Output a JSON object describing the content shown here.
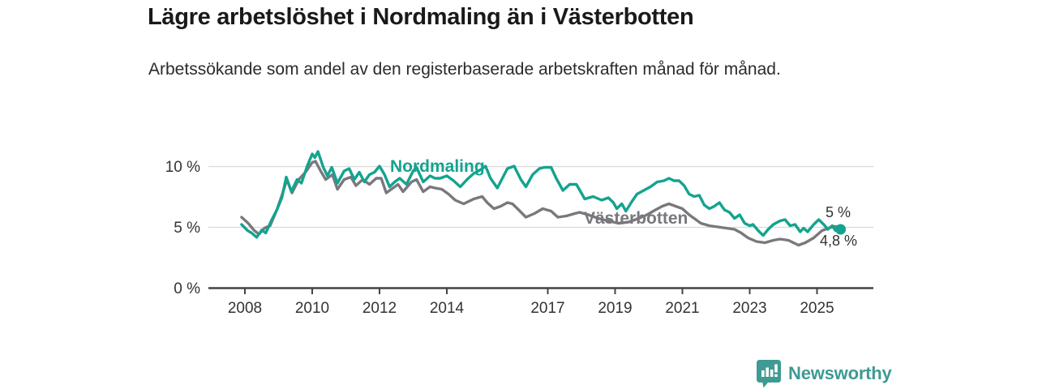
{
  "header": {
    "title": "Lägre arbetslöshet i Nordmaling än i Västerbotten",
    "subtitle": "Arbetssökande som andel av den registerbaserade arbetskraften månad för månad."
  },
  "footer": {
    "brand": "Newsworthy"
  },
  "colors": {
    "nordmaling": "#14a38f",
    "vasterbotten": "#7a787d",
    "grid": "#d9d9d9",
    "axis": "#444444",
    "text": "#333333",
    "title": "#191919",
    "logo": "#3f9a93",
    "background": "#ffffff"
  },
  "chart_data": {
    "type": "line",
    "title": "Lägre arbetslöshet i Nordmaling än i Västerbotten",
    "subtitle": "Arbetssökande som andel av den registerbaserade arbetskraften månad för månad.",
    "xlabel": "",
    "ylabel": "",
    "unit": "%",
    "xlim": [
      2007.9,
      2026.2
    ],
    "ylim": [
      0,
      12
    ],
    "grid": "horizontal",
    "legend_position": "inline",
    "y_ticks": [
      {
        "value": 0,
        "label": "0 %"
      },
      {
        "value": 5,
        "label": "5 %"
      },
      {
        "value": 10,
        "label": "10 %"
      }
    ],
    "y_gridlines": [
      5,
      10
    ],
    "x_ticks": [
      {
        "year": 2008,
        "label": "2008"
      },
      {
        "year": 2010,
        "label": "2010"
      },
      {
        "year": 2012,
        "label": "2012"
      },
      {
        "year": 2014,
        "label": "2014"
      },
      {
        "year": 2017,
        "label": "2017"
      },
      {
        "year": 2019,
        "label": "2019"
      },
      {
        "year": 2021,
        "label": "2021"
      },
      {
        "year": 2023,
        "label": "2023"
      },
      {
        "year": 2025,
        "label": "2025"
      }
    ],
    "series": [
      {
        "name": "Nordmaling",
        "color": "#14a38f",
        "latest": 4.8,
        "end_label": "4,8 %",
        "end_marker": "dot",
        "points": [
          [
            2007.9,
            5.2
          ],
          [
            2008.08,
            4.7
          ],
          [
            2008.2,
            4.5
          ],
          [
            2008.35,
            4.15
          ],
          [
            2008.5,
            4.75
          ],
          [
            2008.62,
            4.5
          ],
          [
            2008.8,
            5.6
          ],
          [
            2008.95,
            6.4
          ],
          [
            2009.1,
            7.4
          ],
          [
            2009.23,
            9.1
          ],
          [
            2009.38,
            7.9
          ],
          [
            2009.55,
            8.9
          ],
          [
            2009.68,
            8.6
          ],
          [
            2009.85,
            10.0
          ],
          [
            2010.0,
            11.0
          ],
          [
            2010.08,
            10.7
          ],
          [
            2010.17,
            11.2
          ],
          [
            2010.33,
            9.9
          ],
          [
            2010.45,
            9.2
          ],
          [
            2010.58,
            9.9
          ],
          [
            2010.75,
            8.6
          ],
          [
            2010.95,
            9.6
          ],
          [
            2011.1,
            9.8
          ],
          [
            2011.25,
            8.9
          ],
          [
            2011.4,
            9.5
          ],
          [
            2011.55,
            8.7
          ],
          [
            2011.7,
            9.3
          ],
          [
            2011.85,
            9.5
          ],
          [
            2012.0,
            10.0
          ],
          [
            2012.15,
            9.3
          ],
          [
            2012.3,
            8.3
          ],
          [
            2012.45,
            8.7
          ],
          [
            2012.6,
            9.0
          ],
          [
            2012.8,
            8.5
          ],
          [
            2013.0,
            9.6
          ],
          [
            2013.1,
            9.9
          ],
          [
            2013.3,
            8.7
          ],
          [
            2013.5,
            9.2
          ],
          [
            2013.65,
            9.0
          ],
          [
            2013.8,
            9.0
          ],
          [
            2014.0,
            9.2
          ],
          [
            2014.2,
            8.8
          ],
          [
            2014.4,
            8.3
          ],
          [
            2014.6,
            8.9
          ],
          [
            2014.8,
            9.4
          ],
          [
            2015.0,
            9.7
          ],
          [
            2015.15,
            10.0
          ],
          [
            2015.3,
            9.0
          ],
          [
            2015.5,
            8.2
          ],
          [
            2015.65,
            9.0
          ],
          [
            2015.8,
            9.8
          ],
          [
            2016.0,
            10.0
          ],
          [
            2016.2,
            8.9
          ],
          [
            2016.35,
            8.3
          ],
          [
            2016.55,
            9.3
          ],
          [
            2016.75,
            9.8
          ],
          [
            2016.9,
            9.9
          ],
          [
            2017.1,
            9.9
          ],
          [
            2017.25,
            9.0
          ],
          [
            2017.45,
            8.0
          ],
          [
            2017.65,
            8.5
          ],
          [
            2017.85,
            8.5
          ],
          [
            2018.1,
            7.3
          ],
          [
            2018.35,
            7.5
          ],
          [
            2018.6,
            7.2
          ],
          [
            2018.8,
            7.4
          ],
          [
            2018.95,
            7.0
          ],
          [
            2019.05,
            6.5
          ],
          [
            2019.2,
            6.9
          ],
          [
            2019.32,
            6.3
          ],
          [
            2019.5,
            7.1
          ],
          [
            2019.65,
            7.7
          ],
          [
            2019.85,
            8.0
          ],
          [
            2020.05,
            8.3
          ],
          [
            2020.25,
            8.7
          ],
          [
            2020.45,
            8.8
          ],
          [
            2020.6,
            9.0
          ],
          [
            2020.75,
            8.8
          ],
          [
            2020.9,
            8.8
          ],
          [
            2021.05,
            8.4
          ],
          [
            2021.2,
            7.7
          ],
          [
            2021.35,
            7.5
          ],
          [
            2021.5,
            7.6
          ],
          [
            2021.65,
            6.8
          ],
          [
            2021.8,
            6.5
          ],
          [
            2021.95,
            6.7
          ],
          [
            2022.1,
            7.0
          ],
          [
            2022.25,
            6.4
          ],
          [
            2022.4,
            6.2
          ],
          [
            2022.55,
            5.7
          ],
          [
            2022.7,
            6.0
          ],
          [
            2022.85,
            5.3
          ],
          [
            2023.0,
            5.1
          ],
          [
            2023.1,
            5.2
          ],
          [
            2023.25,
            4.7
          ],
          [
            2023.4,
            4.3
          ],
          [
            2023.55,
            4.8
          ],
          [
            2023.7,
            5.2
          ],
          [
            2023.9,
            5.5
          ],
          [
            2024.05,
            5.6
          ],
          [
            2024.2,
            5.1
          ],
          [
            2024.35,
            5.2
          ],
          [
            2024.5,
            4.6
          ],
          [
            2024.6,
            4.9
          ],
          [
            2024.72,
            4.6
          ],
          [
            2024.9,
            5.2
          ],
          [
            2025.05,
            5.6
          ],
          [
            2025.2,
            5.2
          ],
          [
            2025.32,
            4.8
          ],
          [
            2025.45,
            5.1
          ],
          [
            2025.55,
            4.7
          ],
          [
            2025.7,
            4.8
          ]
        ]
      },
      {
        "name": "Västerbotten",
        "color": "#7a787d",
        "latest": 5.0,
        "end_label": "5 %",
        "end_marker": "none",
        "points": [
          [
            2007.9,
            5.8
          ],
          [
            2008.1,
            5.3
          ],
          [
            2008.28,
            4.7
          ],
          [
            2008.42,
            4.4
          ],
          [
            2008.58,
            4.9
          ],
          [
            2008.75,
            5.1
          ],
          [
            2008.95,
            6.4
          ],
          [
            2009.1,
            7.6
          ],
          [
            2009.25,
            8.9
          ],
          [
            2009.4,
            7.8
          ],
          [
            2009.6,
            8.9
          ],
          [
            2009.8,
            9.5
          ],
          [
            2010.0,
            10.3
          ],
          [
            2010.1,
            10.4
          ],
          [
            2010.25,
            9.6
          ],
          [
            2010.4,
            8.9
          ],
          [
            2010.6,
            9.3
          ],
          [
            2010.75,
            8.1
          ],
          [
            2010.95,
            8.9
          ],
          [
            2011.15,
            9.1
          ],
          [
            2011.3,
            8.4
          ],
          [
            2011.5,
            8.9
          ],
          [
            2011.7,
            8.5
          ],
          [
            2011.9,
            9.0
          ],
          [
            2012.05,
            9.0
          ],
          [
            2012.2,
            7.8
          ],
          [
            2012.4,
            8.2
          ],
          [
            2012.55,
            8.5
          ],
          [
            2012.7,
            7.9
          ],
          [
            2012.95,
            8.7
          ],
          [
            2013.1,
            8.9
          ],
          [
            2013.3,
            7.9
          ],
          [
            2013.5,
            8.3
          ],
          [
            2013.65,
            8.2
          ],
          [
            2013.85,
            8.1
          ],
          [
            2014.05,
            7.7
          ],
          [
            2014.25,
            7.2
          ],
          [
            2014.5,
            6.9
          ],
          [
            2014.8,
            7.3
          ],
          [
            2015.05,
            7.5
          ],
          [
            2015.2,
            7.0
          ],
          [
            2015.4,
            6.5
          ],
          [
            2015.6,
            6.7
          ],
          [
            2015.8,
            7.0
          ],
          [
            2015.95,
            6.9
          ],
          [
            2016.1,
            6.5
          ],
          [
            2016.35,
            5.8
          ],
          [
            2016.6,
            6.1
          ],
          [
            2016.85,
            6.5
          ],
          [
            2017.1,
            6.3
          ],
          [
            2017.3,
            5.8
          ],
          [
            2017.55,
            5.9
          ],
          [
            2017.8,
            6.1
          ],
          [
            2017.95,
            6.2
          ],
          [
            2018.2,
            6.0
          ],
          [
            2018.5,
            5.7
          ],
          [
            2018.8,
            5.5
          ],
          [
            2019.1,
            5.3
          ],
          [
            2019.4,
            5.4
          ],
          [
            2019.7,
            5.7
          ],
          [
            2019.95,
            6.0
          ],
          [
            2020.2,
            6.4
          ],
          [
            2020.4,
            6.7
          ],
          [
            2020.6,
            6.9
          ],
          [
            2020.8,
            6.7
          ],
          [
            2021.0,
            6.5
          ],
          [
            2021.2,
            6.0
          ],
          [
            2021.4,
            5.6
          ],
          [
            2021.55,
            5.3
          ],
          [
            2021.8,
            5.1
          ],
          [
            2022.05,
            5.0
          ],
          [
            2022.3,
            4.9
          ],
          [
            2022.55,
            4.8
          ],
          [
            2022.75,
            4.5
          ],
          [
            2022.95,
            4.1
          ],
          [
            2023.2,
            3.8
          ],
          [
            2023.45,
            3.7
          ],
          [
            2023.7,
            3.9
          ],
          [
            2023.9,
            4.0
          ],
          [
            2024.15,
            3.9
          ],
          [
            2024.45,
            3.5
          ],
          [
            2024.65,
            3.7
          ],
          [
            2024.9,
            4.1
          ],
          [
            2025.15,
            4.7
          ],
          [
            2025.35,
            4.9
          ],
          [
            2025.5,
            5.05
          ],
          [
            2025.7,
            5.0
          ]
        ]
      }
    ]
  }
}
